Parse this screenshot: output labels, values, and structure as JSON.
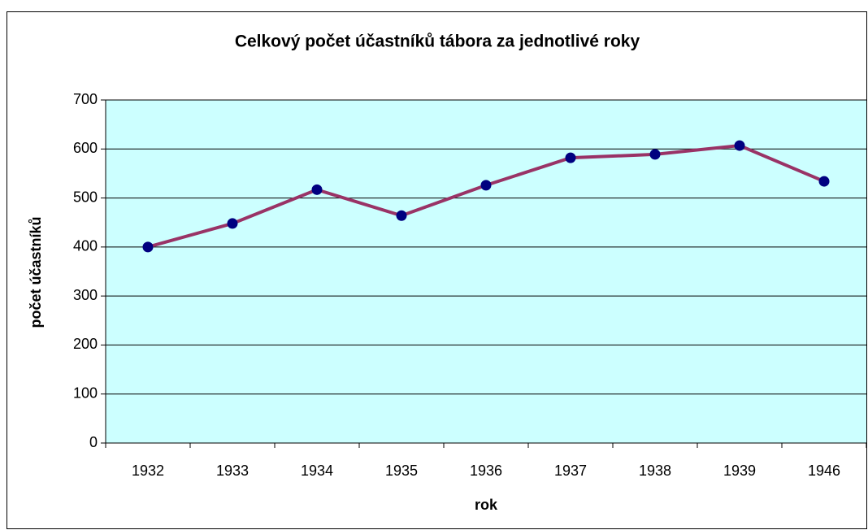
{
  "chart_data": {
    "type": "line",
    "title": "Celkový počet účastníků tábora za jednotlivé roky",
    "x_label": "rok",
    "y_label": "počet účastníků",
    "categories": [
      "1932",
      "1933",
      "1934",
      "1935",
      "1936",
      "1937",
      "1938",
      "1939",
      "1946"
    ],
    "series": [
      {
        "name": "počet účastníků",
        "color": "#993366",
        "marker_color": "#000080",
        "values": [
          400,
          448,
          517,
          464,
          526,
          582,
          589,
          607,
          534
        ]
      }
    ],
    "ylim": [
      0,
      700
    ],
    "yticks": [
      0,
      100,
      200,
      300,
      400,
      500,
      600,
      700
    ],
    "grid": true,
    "plot_background": "#ccffff"
  }
}
